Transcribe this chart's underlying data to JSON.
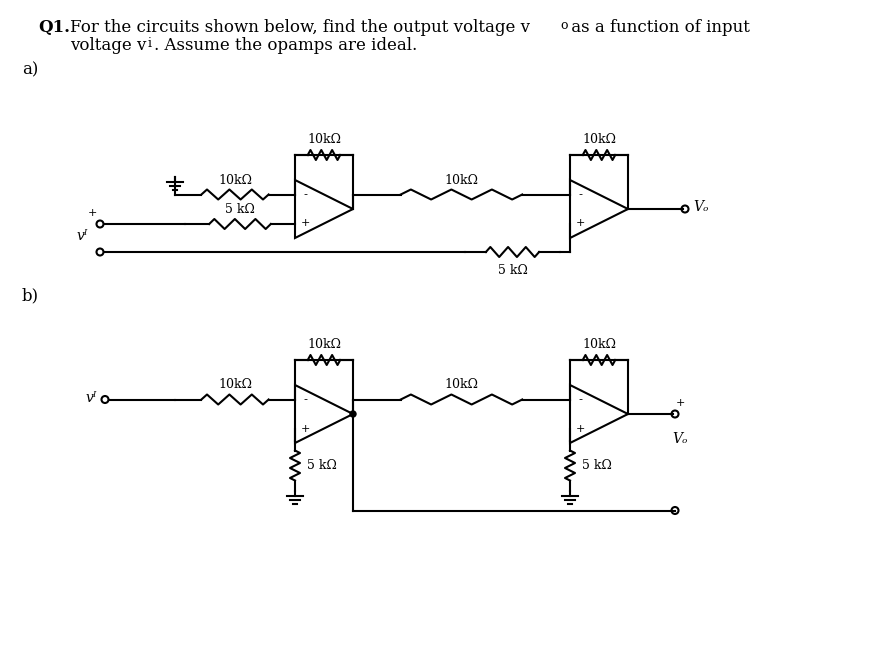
{
  "bg_color": "#ffffff",
  "line_color": "#000000",
  "title_q": "Q1.",
  "title_line1": "For the circuits shown below, find the output voltage v",
  "title_line1_sub": "o",
  "title_line1_rest": " as a function of input",
  "title_line2": "voltage v",
  "title_line2_sub": "i",
  "title_line2_rest": ". Assume the opamps are ideal.",
  "label_a": "a)",
  "label_b": "b)"
}
